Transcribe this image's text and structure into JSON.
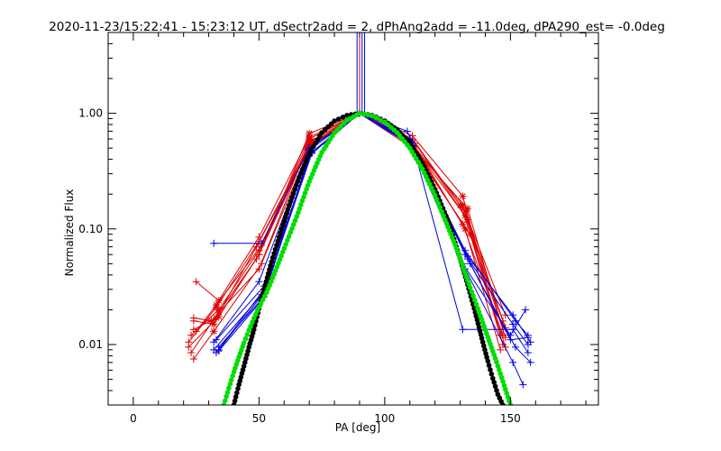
{
  "chart_data": {
    "type": "scatter",
    "title": "2020-11-23/15:22:41 - 15:23:12 UT, dSectr2add = 2, dPhAng2add = -11.0deg, dPA290_est= -0.0deg",
    "xlabel": "PA [deg]",
    "ylabel": "Normalized Flux",
    "xlim": [
      -10,
      185
    ],
    "ylim": [
      0.003,
      5.0
    ],
    "yscale": "log",
    "grid": false,
    "x_ticks": [
      0,
      50,
      100,
      150
    ],
    "x_tick_labels": [
      "0",
      "50",
      "100",
      "150"
    ],
    "y_ticks": [
      0.01,
      0.1,
      1.0
    ],
    "y_tick_labels": [
      "0.01",
      "0.10",
      "1.00"
    ],
    "colors": {
      "red_series": "#dd0000",
      "blue_series": "#0000dd",
      "green_model": "#00dd00",
      "black_model": "#000000",
      "axes": "#000000"
    },
    "series": [
      {
        "style": "red lines with + and * markers",
        "lines": [
          {
            "x": [
              22,
              34,
              50,
              70,
              90,
              111,
              131,
              146
            ],
            "y": [
              0.0095,
              0.0175,
              0.06,
              0.67,
              1.0,
              0.64,
              0.192,
              0.012
            ]
          },
          {
            "x": [
              23,
              34,
              50,
              70,
              90,
              111,
              130,
              147
            ],
            "y": [
              0.012,
              0.02,
              0.065,
              0.6,
              1.0,
              0.6,
              0.16,
              0.016
            ]
          },
          {
            "x": [
              24,
              33,
              49,
              71,
              90,
              112,
              132,
              148
            ],
            "y": [
              0.0135,
              0.017,
              0.07,
              0.55,
              1.0,
              0.55,
              0.14,
              0.018
            ]
          },
          {
            "x": [
              25,
              34,
              50,
              70,
              90,
              111,
              133,
              148
            ],
            "y": [
              0.035,
              0.024,
              0.085,
              0.62,
              1.0,
              0.6,
              0.12,
              0.014
            ]
          },
          {
            "x": [
              24,
              32,
              51,
              70,
              90,
              112,
              132,
              146
            ],
            "y": [
              0.0075,
              0.013,
              0.05,
              0.5,
              1.0,
              0.52,
              0.1,
              0.009
            ]
          },
          {
            "x": [
              22,
              33,
              50,
              71,
              90,
              110,
              131,
              147
            ],
            "y": [
              0.0105,
              0.021,
              0.078,
              0.58,
              1.0,
              0.58,
              0.11,
              0.012
            ]
          },
          {
            "x": [
              24,
              32,
              50,
              70,
              90,
              111,
              134,
              147
            ],
            "y": [
              0.016,
              0.015,
              0.06,
              0.52,
              1.0,
              0.5,
              0.09,
              0.01
            ]
          },
          {
            "x": [
              23,
              34,
              49,
              70,
              90,
              111,
              132,
              148
            ],
            "y": [
              0.0085,
              0.019,
              0.055,
              0.56,
              1.0,
              0.53,
              0.13,
              0.0095
            ]
          },
          {
            "x": [
              24,
              31,
              50,
              69,
              90,
              112,
              131,
              148
            ],
            "y": [
              0.017,
              0.016,
              0.045,
              0.5,
              1.0,
              0.51,
              0.16,
              0.0115
            ]
          },
          {
            "x": [
              25,
              33,
              51,
              70,
              90,
              110,
              133,
              147
            ],
            "y": [
              0.013,
              0.022,
              0.072,
              0.53,
              1.0,
              0.54,
              0.15,
              0.0135
            ]
          }
        ]
      },
      {
        "style": "blue lines with + markers",
        "lines": [
          {
            "x": [
              32,
              51,
              70,
              90,
              111,
              131,
              151,
              157
            ],
            "y": [
              0.075,
              0.075,
              0.5,
              1.0,
              0.55,
              0.0135,
              0.0135,
              0.0085
            ]
          },
          {
            "x": [
              33,
              52,
              70,
              90,
              109,
              131,
              150,
              156
            ],
            "y": [
              0.0085,
              0.03,
              0.5,
              1.0,
              0.7,
              0.05,
              0.012,
              0.02
            ]
          },
          {
            "x": [
              34,
              52,
              71,
              90,
              110,
              132,
              151,
              157
            ],
            "y": [
              0.009,
              0.028,
              0.45,
              1.0,
              0.6,
              0.06,
              0.015,
              0.01
            ]
          },
          {
            "x": [
              32,
              51,
              70,
              90,
              110,
              133,
              150,
              157
            ],
            "y": [
              0.009,
              0.027,
              0.48,
              1.0,
              0.57,
              0.055,
              0.011,
              0.0115
            ]
          },
          {
            "x": [
              34,
              52,
              70,
              90,
              111,
              134,
              152,
              158
            ],
            "y": [
              0.0095,
              0.026,
              0.44,
              1.0,
              0.53,
              0.05,
              0.0095,
              0.007
            ]
          },
          {
            "x": [
              33,
              52,
              71,
              90,
              110,
              132,
              151,
              155
            ],
            "y": [
              0.011,
              0.032,
              0.46,
              1.0,
              0.56,
              0.045,
              0.007,
              0.0045
            ]
          },
          {
            "x": [
              32,
              50,
              70,
              90,
              110,
              132,
              152,
              157
            ],
            "y": [
              0.0105,
              0.035,
              0.5,
              1.0,
              0.59,
              0.065,
              0.016,
              0.012
            ]
          },
          {
            "x": [
              34,
              51,
              70,
              90,
              111,
              133,
              151,
              158
            ],
            "y": [
              0.0088,
              0.024,
              0.43,
              1.0,
              0.52,
              0.058,
              0.018,
              0.0105
            ]
          }
        ]
      },
      {
        "style": "vertical spike lines at PA ~ 90",
        "x": [
          89,
          90,
          91,
          92
        ],
        "y_from": 1.0,
        "y_to": 5.0
      },
      {
        "style": "green dots (model)",
        "x": [
          36,
          38,
          40,
          42,
          44,
          46,
          48,
          50,
          53,
          56,
          60,
          65,
          70,
          75,
          80,
          85,
          90,
          95,
          100,
          105,
          110,
          115,
          120,
          124,
          128,
          131,
          134,
          137,
          140,
          142,
          144,
          146,
          148,
          150
        ],
        "y": [
          0.003,
          0.0042,
          0.0058,
          0.0078,
          0.0103,
          0.0133,
          0.0169,
          0.0211,
          0.0282,
          0.0405,
          0.0678,
          0.128,
          0.258,
          0.46,
          0.68,
          0.87,
          1.0,
          0.95,
          0.84,
          0.68,
          0.5,
          0.33,
          0.195,
          0.12,
          0.073,
          0.048,
          0.031,
          0.0205,
          0.0134,
          0.0101,
          0.0076,
          0.0056,
          0.0041,
          0.003
        ]
      },
      {
        "style": "black dots (model)",
        "x": [
          40,
          42,
          44,
          46,
          48,
          50,
          52,
          55,
          58,
          62,
          66,
          70,
          75,
          80,
          85,
          90,
          95,
          100,
          105,
          110,
          115,
          120,
          125,
          129,
          133,
          136,
          139,
          141,
          143,
          145,
          147
        ],
        "y": [
          0.003,
          0.0045,
          0.0065,
          0.0095,
          0.0135,
          0.0205,
          0.03,
          0.052,
          0.085,
          0.16,
          0.28,
          0.45,
          0.68,
          0.86,
          0.96,
          1.0,
          0.96,
          0.86,
          0.72,
          0.55,
          0.37,
          0.22,
          0.12,
          0.065,
          0.033,
          0.019,
          0.0105,
          0.0072,
          0.0051,
          0.0037,
          0.003
        ]
      }
    ]
  }
}
